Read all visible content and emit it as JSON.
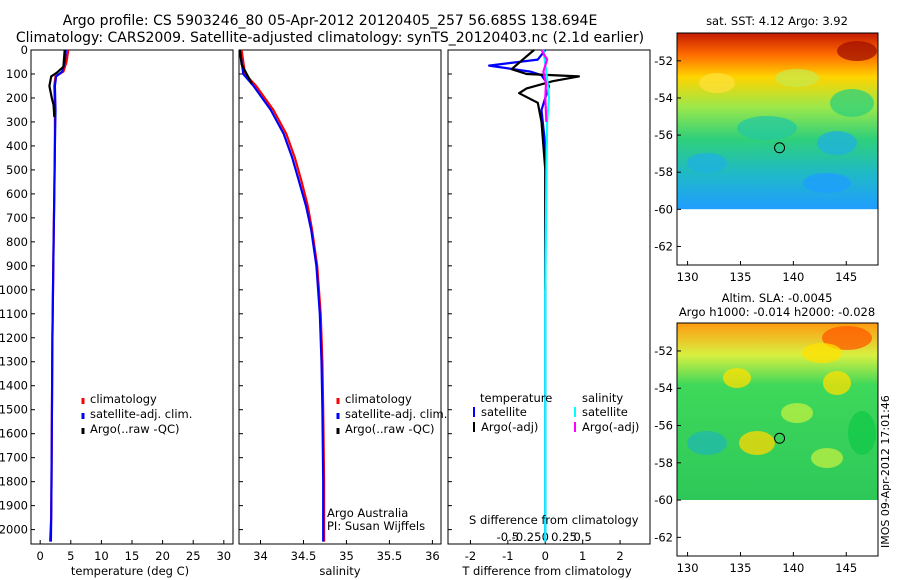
{
  "header": {
    "title_line1": "Argo profile: CS 5903246_80 05-Apr-2012 20120405_257 56.685S 138.694E",
    "title_line2": "Climatology: CARS2009. Satellite-adjusted climatology: synTS_20120403.nc (2.1d earlier)"
  },
  "colors": {
    "climatology": "#ff0000",
    "satellite": "#0000ff",
    "argo": "#000000",
    "sal_sat": "#00ffff",
    "sal_argo": "#ff00ff"
  },
  "chart_data": [
    {
      "type": "line",
      "name": "temperature-panel",
      "xlabel": "temperature (deg C)",
      "ylabel": "",
      "xlim": [
        -1.5,
        31.5
      ],
      "ylim": [
        2060,
        0
      ],
      "xticks": [
        0,
        5,
        10,
        15,
        20,
        25,
        30
      ],
      "yticks": [
        0,
        100,
        200,
        300,
        400,
        500,
        600,
        700,
        800,
        900,
        1000,
        1100,
        1200,
        1300,
        1400,
        1500,
        1600,
        1700,
        1800,
        1900,
        2000
      ],
      "legend": [
        "climatology",
        "satellite-adj. clim.",
        "Argo(..raw -QC)"
      ],
      "series": [
        {
          "name": "climatology",
          "color": "#ff0000",
          "x": [
            4.6,
            4.3,
            3.8,
            2.5,
            2.3,
            2.4,
            2.4,
            2.3,
            2.2,
            2.1,
            2.0,
            1.95,
            1.9,
            1.85,
            1.8,
            1.6
          ],
          "y": [
            0,
            50,
            90,
            110,
            150,
            250,
            400,
            600,
            800,
            1000,
            1200,
            1400,
            1600,
            1800,
            1950,
            2050
          ]
        },
        {
          "name": "satellite-adj. clim.",
          "color": "#0000ff",
          "x": [
            4.2,
            4.0,
            3.6,
            2.6,
            2.4,
            2.5,
            2.4,
            2.3,
            2.2,
            2.1,
            2.0,
            1.95,
            1.9,
            1.85,
            1.8,
            1.75
          ],
          "y": [
            0,
            50,
            90,
            110,
            150,
            250,
            400,
            600,
            800,
            1000,
            1200,
            1400,
            1600,
            1800,
            1950,
            2050
          ]
        },
        {
          "name": "Argo(..raw -QC)",
          "color": "#000000",
          "x": [
            4.0,
            3.8,
            2.7,
            1.8,
            1.5,
            1.9,
            2.2,
            2.3
          ],
          "y": [
            0,
            70,
            95,
            110,
            150,
            200,
            230,
            280
          ]
        }
      ]
    },
    {
      "type": "line",
      "name": "salinity-panel",
      "xlabel": "salinity",
      "ylabel": "",
      "xlim": [
        33.75,
        36.1
      ],
      "ylim": [
        2060,
        0
      ],
      "xticks": [
        34,
        34.5,
        35,
        35.5,
        36
      ],
      "legend": [
        "climatology",
        "satellite-adj. clim.",
        "Argo(..raw -QC)"
      ],
      "annotation": [
        "Argo Australia",
        "PI: Susan Wijffels"
      ],
      "series": [
        {
          "name": "climatology",
          "color": "#ff0000",
          "x": [
            33.78,
            33.82,
            33.95,
            34.15,
            34.3,
            34.4,
            34.48,
            34.55,
            34.6,
            34.66,
            34.7,
            34.72,
            34.73,
            34.74,
            34.74
          ],
          "y": [
            0,
            100,
            150,
            250,
            350,
            450,
            550,
            650,
            750,
            900,
            1100,
            1300,
            1500,
            1800,
            2050
          ]
        },
        {
          "name": "satellite-adj. clim.",
          "color": "#0000ff",
          "x": [
            33.76,
            33.8,
            33.92,
            34.12,
            34.27,
            34.37,
            34.45,
            34.53,
            34.59,
            34.65,
            34.69,
            34.71,
            34.72,
            34.73,
            34.73
          ],
          "y": [
            0,
            100,
            150,
            250,
            350,
            450,
            550,
            650,
            750,
            900,
            1100,
            1300,
            1500,
            1800,
            2050
          ]
        },
        {
          "name": "Argo(..raw -QC)",
          "color": "#000000",
          "x": [
            33.76,
            33.78,
            33.84,
            33.9
          ],
          "y": [
            0,
            60,
            100,
            140
          ]
        }
      ]
    },
    {
      "type": "line",
      "name": "difference-panel",
      "xlabel": "T difference from climatology",
      "top_label": "S difference from climatology",
      "xlim": [
        -2.6,
        2.8
      ],
      "ylim": [
        2060,
        0
      ],
      "xticks": [
        -2,
        -1,
        0,
        1,
        2
      ],
      "top_ticks": [
        "-0.5",
        "-0.25",
        "0",
        "0.25",
        "0.5"
      ],
      "legend_left": {
        "title": "temperature",
        "items": [
          "satellite",
          "Argo(-adj)"
        ]
      },
      "legend_right": {
        "title": "salinity",
        "items": [
          "satellite",
          "Argo(-adj)"
        ]
      },
      "series": [
        {
          "name": "T satellite",
          "color": "#0000ff",
          "x": [
            0,
            -0.2,
            -1.5,
            -0.4,
            -0.1,
            0.1,
            -0.1,
            0.0,
            0.0,
            0.0,
            0.0,
            0.0
          ],
          "y": [
            0,
            40,
            65,
            90,
            105,
            150,
            250,
            400,
            700,
            1000,
            1500,
            2050
          ]
        },
        {
          "name": "T Argo(-adj)",
          "color": "#000000",
          "x": [
            -0.3,
            -0.6,
            -0.9,
            -0.5,
            0.9,
            0.2,
            -0.5,
            -0.7,
            -0.2,
            -0.1,
            0.0,
            0.0,
            0.0
          ],
          "y": [
            0,
            40,
            80,
            100,
            110,
            130,
            160,
            180,
            220,
            300,
            500,
            800,
            1000
          ]
        },
        {
          "name": "S satellite",
          "color": "#00ffff",
          "x": [
            -0.05,
            0.0,
            0.05,
            0.1,
            0.05,
            0.03,
            0.02,
            0.0,
            0.0,
            0.0
          ],
          "y": [
            0,
            60,
            120,
            200,
            300,
            500,
            700,
            1000,
            1500,
            2050
          ]
        },
        {
          "name": "S Argo(-adj)",
          "color": "#ff00ff",
          "x": [
            -0.1,
            0.05,
            -0.05,
            0.02,
            0.0,
            0.03
          ],
          "y": [
            0,
            40,
            90,
            140,
            200,
            300
          ]
        }
      ]
    },
    {
      "type": "heatmap",
      "name": "sst-map",
      "title": "sat. SST: 4.12 Argo: 3.92",
      "xlim": [
        129,
        148
      ],
      "ylim": [
        -63,
        -50.5
      ],
      "xticks": [
        130,
        135,
        140,
        145
      ],
      "yticks": [
        -52,
        -54,
        -56,
        -58,
        -60,
        -62
      ],
      "marker": {
        "lon": 138.694,
        "lat": -56.685
      }
    },
    {
      "type": "heatmap",
      "name": "sla-map",
      "title": "Altim. SLA: -0.0045",
      "subtitle": "Argo h1000: -0.014 h2000: -0.028",
      "xlim": [
        129,
        148
      ],
      "ylim": [
        -63,
        -50.5
      ],
      "xticks": [
        130,
        135,
        140,
        145
      ],
      "yticks": [
        -52,
        -54,
        -56,
        -58,
        -60,
        -62
      ],
      "marker": {
        "lon": 138.694,
        "lat": -56.685
      }
    }
  ],
  "footer": {
    "stamp": "IMOS 09-Apr-2012 17:01:46"
  }
}
